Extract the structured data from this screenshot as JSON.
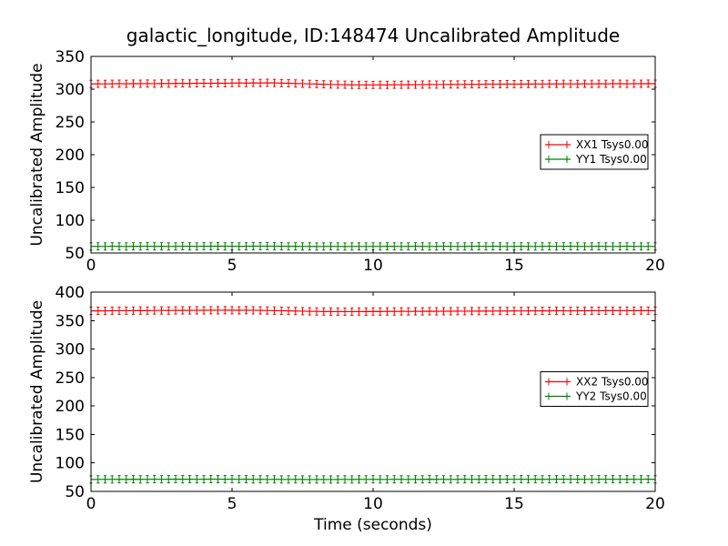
{
  "figure": {
    "title": "galactic_longitude, ID:148474 Uncalibrated Amplitude",
    "background": "#ffffff",
    "text_color": "#000000"
  },
  "chart_data": [
    {
      "type": "line",
      "subplot": 1,
      "xlabel": "",
      "ylabel": "Uncalibrated Amplitude",
      "xlim": [
        0,
        20
      ],
      "ylim": [
        50,
        350
      ],
      "xticks": [
        0,
        5,
        10,
        15,
        20
      ],
      "yticks": [
        50,
        100,
        150,
        200,
        250,
        300,
        350
      ],
      "grid": false,
      "legend_loc": "center right",
      "x": [
        0,
        0.25,
        0.5,
        0.75,
        1,
        1.25,
        1.5,
        1.75,
        2,
        2.25,
        2.5,
        2.75,
        3,
        3.25,
        3.5,
        3.75,
        4,
        4.25,
        4.5,
        4.75,
        5,
        5.25,
        5.5,
        5.75,
        6,
        6.25,
        6.5,
        6.75,
        7,
        7.25,
        7.5,
        7.75,
        8,
        8.25,
        8.5,
        8.75,
        9,
        9.25,
        9.5,
        9.75,
        10,
        10.25,
        10.5,
        10.75,
        11,
        11.25,
        11.5,
        11.75,
        12,
        12.25,
        12.5,
        12.75,
        13,
        13.25,
        13.5,
        13.75,
        14,
        14.25,
        14.5,
        14.75,
        15,
        15.25,
        15.5,
        15.75,
        16,
        16.25,
        16.5,
        16.75,
        17,
        17.25,
        17.5,
        17.75,
        18,
        18.25,
        18.5,
        18.75,
        19,
        19.25,
        19.5,
        19.75,
        20
      ],
      "series": [
        {
          "name": "XX1 Tsys0.00",
          "color": "#ff0000",
          "style": "errorbar",
          "yerr": 5.5,
          "values": [
            308.0,
            308.2,
            308.1,
            308.3,
            308.4,
            308.2,
            308.5,
            308.3,
            308.6,
            308.4,
            308.7,
            308.5,
            308.8,
            308.9,
            308.7,
            309.0,
            309.1,
            308.9,
            309.2,
            309.0,
            309.3,
            309.5,
            309.2,
            309.6,
            309.4,
            309.7,
            309.5,
            309.2,
            309.0,
            308.7,
            308.4,
            308.1,
            307.8,
            307.5,
            307.2,
            307.0,
            306.8,
            306.6,
            306.5,
            306.6,
            306.5,
            306.7,
            306.6,
            306.8,
            306.7,
            306.9,
            306.8,
            307.0,
            307.1,
            307.0,
            307.2,
            307.3,
            307.2,
            307.4,
            307.5,
            307.4,
            307.6,
            307.7,
            307.6,
            307.8,
            307.7,
            307.9,
            307.8,
            308.0,
            307.9,
            308.1,
            308.0,
            308.2,
            308.1,
            308.0,
            308.2,
            308.1,
            308.3,
            308.2,
            308.4,
            308.3,
            308.2,
            308.4,
            308.3,
            308.5,
            308.3
          ]
        },
        {
          "name": "YY1 Tsys0.00",
          "color": "#008000",
          "style": "errorbar",
          "yerr": 5.5,
          "values": [
            60.0,
            60.1,
            60.0,
            60.2,
            60.1,
            60.0,
            60.2,
            60.1,
            60.3,
            60.1,
            60.2,
            60.0,
            60.1,
            60.3,
            60.2,
            60.1,
            60.3,
            60.2,
            60.4,
            60.2,
            60.3,
            60.1,
            60.2,
            60.4,
            60.3,
            60.5,
            60.3,
            60.2,
            60.1,
            60.2,
            60.0,
            60.1,
            59.9,
            60.0,
            60.1,
            60.0,
            59.9,
            60.0,
            60.1,
            60.0,
            60.1,
            60.0,
            60.2,
            60.1,
            60.0,
            60.1,
            60.2,
            60.1,
            60.0,
            60.1,
            60.2,
            60.1,
            60.0,
            60.1,
            60.2,
            60.3,
            60.1,
            60.2,
            60.1,
            60.0,
            60.1,
            60.2,
            60.1,
            60.0,
            60.1,
            60.2,
            60.1,
            60.3,
            60.2,
            60.1,
            60.0,
            60.1,
            60.2,
            60.1,
            60.0,
            60.1,
            60.2,
            60.1,
            60.0,
            60.1,
            60.0
          ]
        }
      ]
    },
    {
      "type": "line",
      "subplot": 2,
      "xlabel": "Time (seconds)",
      "ylabel": "Uncalibrated Amplitude",
      "xlim": [
        0,
        20
      ],
      "ylim": [
        50,
        400
      ],
      "xticks": [
        0,
        5,
        10,
        15,
        20
      ],
      "yticks": [
        50,
        100,
        150,
        200,
        250,
        300,
        350,
        400
      ],
      "grid": false,
      "legend_loc": "center right",
      "x": [
        0,
        0.25,
        0.5,
        0.75,
        1,
        1.25,
        1.5,
        1.75,
        2,
        2.25,
        2.5,
        2.75,
        3,
        3.25,
        3.5,
        3.75,
        4,
        4.25,
        4.5,
        4.75,
        5,
        5.25,
        5.5,
        5.75,
        6,
        6.25,
        6.5,
        6.75,
        7,
        7.25,
        7.5,
        7.75,
        8,
        8.25,
        8.5,
        8.75,
        9,
        9.25,
        9.5,
        9.75,
        10,
        10.25,
        10.5,
        10.75,
        11,
        11.25,
        11.5,
        11.75,
        12,
        12.25,
        12.5,
        12.75,
        13,
        13.25,
        13.5,
        13.75,
        14,
        14.25,
        14.5,
        14.75,
        15,
        15.25,
        15.5,
        15.75,
        16,
        16.25,
        16.5,
        16.75,
        17,
        17.25,
        17.5,
        17.75,
        18,
        18.25,
        18.5,
        18.75,
        19,
        19.25,
        19.5,
        19.75,
        20
      ],
      "series": [
        {
          "name": "XX2 Tsys0.00",
          "color": "#ff0000",
          "style": "errorbar",
          "yerr": 6.4,
          "values": [
            367.0,
            367.2,
            367.1,
            367.4,
            367.3,
            367.5,
            367.4,
            367.6,
            367.5,
            367.7,
            367.8,
            367.6,
            367.9,
            368.0,
            367.8,
            368.1,
            368.0,
            368.2,
            368.1,
            368.3,
            368.2,
            368.0,
            368.3,
            368.1,
            367.9,
            367.7,
            367.5,
            367.2,
            367.0,
            366.8,
            366.5,
            366.3,
            366.1,
            365.9,
            365.8,
            365.7,
            365.8,
            365.7,
            365.9,
            365.8,
            366.0,
            365.9,
            366.1,
            366.0,
            366.2,
            366.1,
            366.3,
            366.2,
            366.4,
            366.3,
            366.5,
            366.4,
            366.6,
            366.5,
            366.7,
            366.6,
            366.8,
            366.7,
            366.9,
            366.8,
            367.0,
            366.9,
            367.1,
            367.0,
            367.2,
            367.1,
            367.3,
            367.2,
            367.1,
            367.3,
            367.2,
            367.4,
            367.3,
            367.5,
            367.4,
            367.3,
            367.5,
            367.4,
            367.6,
            367.4,
            367.3
          ]
        },
        {
          "name": "YY2 Tsys0.00",
          "color": "#008000",
          "style": "errorbar",
          "yerr": 6.4,
          "values": [
            71.0,
            71.1,
            71.2,
            71.1,
            71.3,
            71.2,
            71.4,
            71.2,
            71.3,
            71.5,
            71.3,
            71.4,
            71.6,
            71.4,
            71.5,
            71.3,
            71.4,
            71.6,
            71.5,
            71.4,
            71.5,
            71.3,
            71.4,
            71.2,
            71.3,
            71.1,
            71.2,
            71.0,
            71.1,
            71.2,
            71.0,
            70.9,
            71.0,
            71.1,
            70.9,
            71.0,
            71.1,
            71.0,
            71.2,
            71.1,
            71.2,
            71.0,
            71.1,
            71.3,
            71.2,
            71.1,
            71.3,
            71.2,
            71.4,
            71.2,
            71.3,
            71.1,
            71.2,
            71.4,
            71.3,
            71.2,
            71.4,
            71.3,
            71.2,
            71.4,
            71.3,
            71.5,
            71.3,
            71.4,
            71.2,
            71.3,
            71.5,
            71.4,
            71.3,
            71.4,
            71.2,
            71.3,
            71.4,
            71.3,
            71.5,
            71.3,
            71.4,
            71.2,
            71.3,
            71.4,
            71.2
          ]
        }
      ]
    }
  ]
}
